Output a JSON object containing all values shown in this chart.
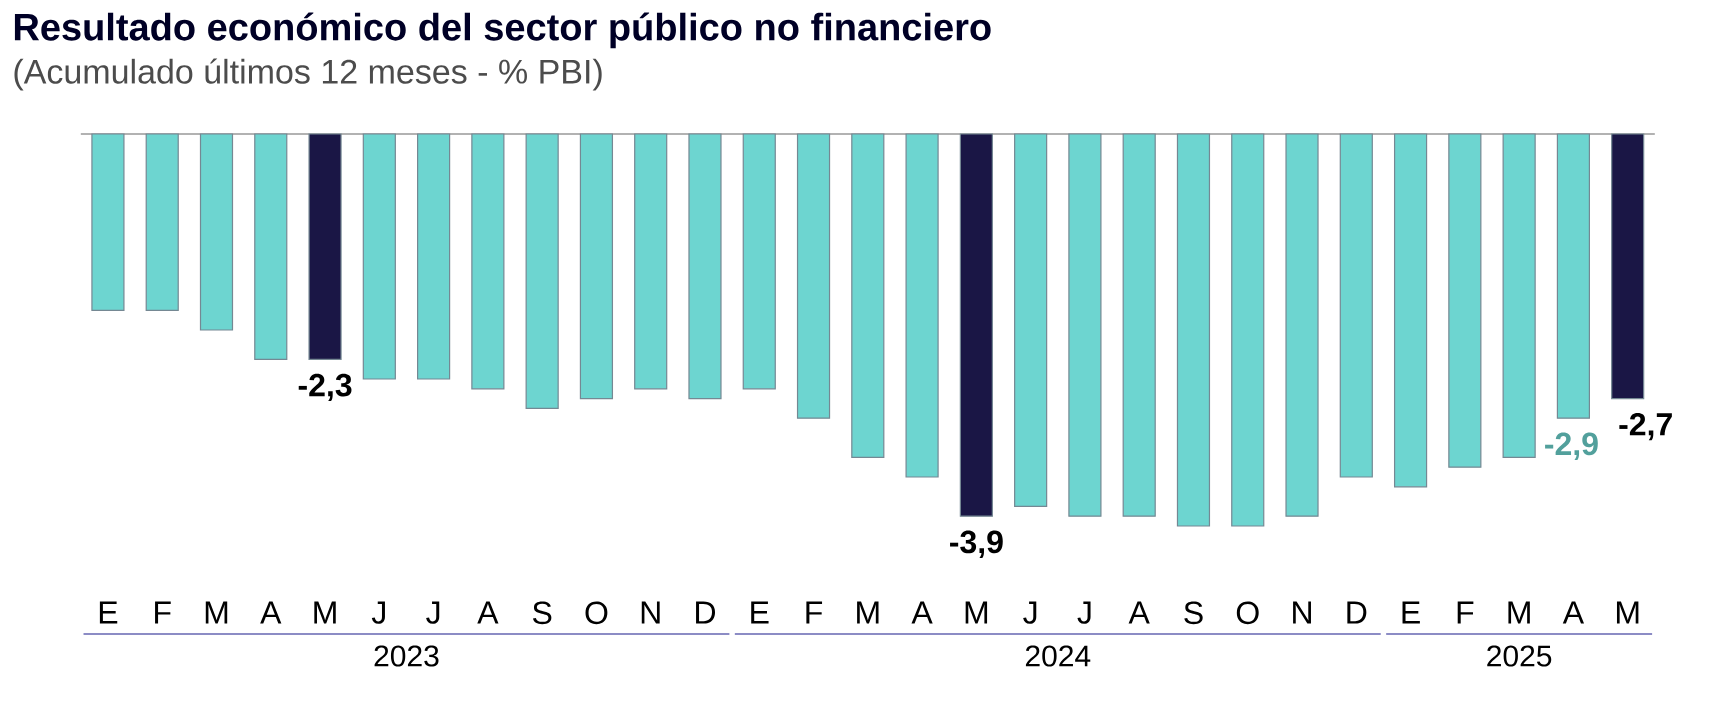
{
  "chart_data": {
    "type": "bar",
    "title": "Resultado económico del sector público no financiero",
    "subtitle": "(Acumulado últimos 12 meses - % PBI)",
    "categories": [
      "E",
      "F",
      "M",
      "A",
      "M",
      "J",
      "J",
      "A",
      "S",
      "O",
      "N",
      "D",
      "E",
      "F",
      "M",
      "A",
      "M",
      "J",
      "J",
      "A",
      "S",
      "O",
      "N",
      "D",
      "E",
      "F",
      "M",
      "A",
      "M"
    ],
    "values": [
      -1.8,
      -1.8,
      -2.0,
      -2.3,
      -2.3,
      -2.5,
      -2.5,
      -2.6,
      -2.8,
      -2.7,
      -2.6,
      -2.7,
      -2.6,
      -2.9,
      -3.3,
      -3.5,
      -3.9,
      -3.8,
      -3.9,
      -3.9,
      -4.0,
      -4.0,
      -3.9,
      -3.5,
      -3.6,
      -3.4,
      -3.3,
      -2.9,
      -2.7
    ],
    "colors": [
      "#6dd5d0",
      "#6dd5d0",
      "#6dd5d0",
      "#6dd5d0",
      "#1a1645",
      "#6dd5d0",
      "#6dd5d0",
      "#6dd5d0",
      "#6dd5d0",
      "#6dd5d0",
      "#6dd5d0",
      "#6dd5d0",
      "#6dd5d0",
      "#6dd5d0",
      "#6dd5d0",
      "#6dd5d0",
      "#1a1645",
      "#6dd5d0",
      "#6dd5d0",
      "#6dd5d0",
      "#6dd5d0",
      "#6dd5d0",
      "#6dd5d0",
      "#6dd5d0",
      "#6dd5d0",
      "#6dd5d0",
      "#6dd5d0",
      "#6dd5d0",
      "#1a1645"
    ],
    "value_labels": [
      null,
      null,
      null,
      null,
      "-2,3",
      null,
      null,
      null,
      null,
      null,
      null,
      null,
      null,
      null,
      null,
      null,
      "-3,9",
      null,
      null,
      null,
      null,
      null,
      null,
      null,
      null,
      null,
      null,
      "-2,9",
      "-2,7"
    ],
    "ylim": [
      -4.0,
      0
    ],
    "annotations": [
      "2023",
      "2024",
      "2025"
    ]
  }
}
